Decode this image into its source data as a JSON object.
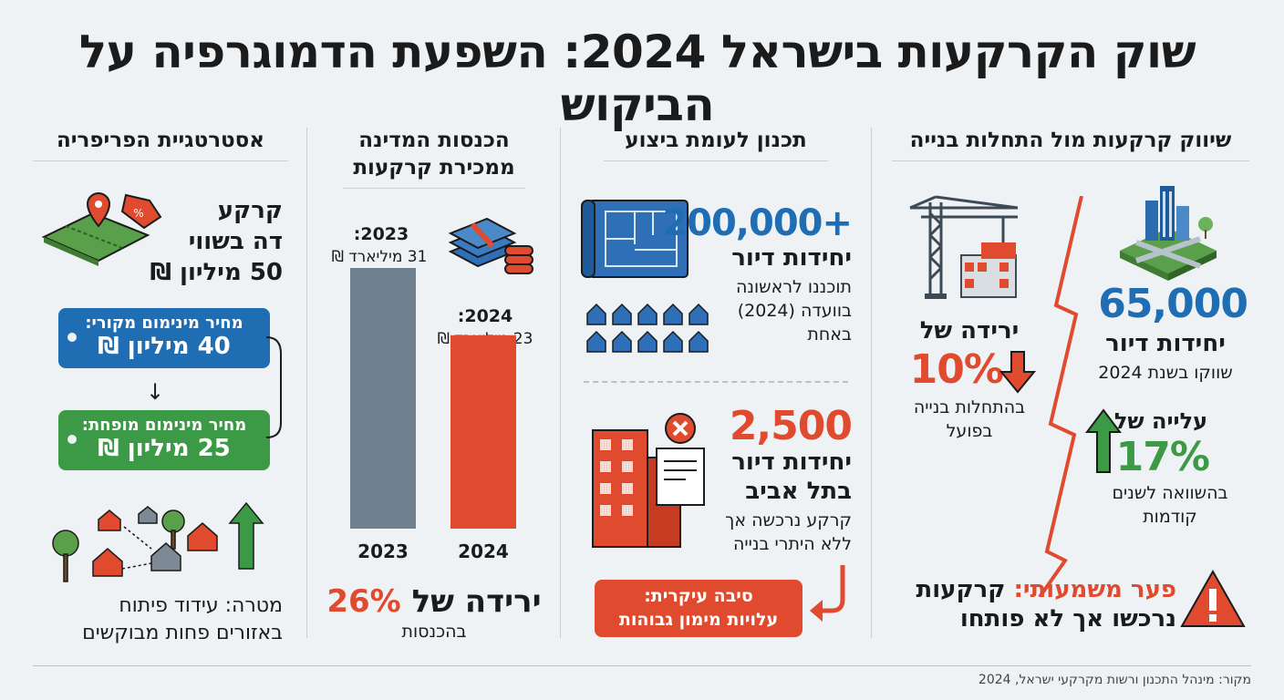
{
  "title": "שוק הקרקעות בישראל 2024: השפעת הדמוגרפיה על הביקוש",
  "col1": {
    "heading": "שיווק קרקעות מול התחלות בנייה",
    "value": "65,000",
    "units": "יחידות דיור",
    "sub": "שווקו בשנת 2024",
    "rise_label": "עלייה של",
    "rise_pct": "17%",
    "rise_sub1": "בהשוואה לשנים",
    "rise_sub2": "קודמות",
    "drop_label": "ירידה של",
    "drop_pct": "10%",
    "drop_sub1": "בהתחלות בנייה",
    "drop_sub2": "בפועל",
    "gap_title": "פער משמעותי:",
    "gap_text1": "קרקעות",
    "gap_text2": "נרכשו אך לא פותחו"
  },
  "col2": {
    "heading": "תכנון לעומת ביצוע",
    "plan_value": "200,000+",
    "plan_units": "יחידות דיור",
    "plan_sub1": "תוכננו לראשונה",
    "plan_sub2": "בוועדה (2024)",
    "plan_sub3": "באחת",
    "ta_value": "2,500",
    "ta_units1": "יחידות דיור",
    "ta_units2": "בתל אביב",
    "ta_sub1": "קרקע נרכשה אך",
    "ta_sub2": "ללא היתרי בנייה",
    "reason1": "סיבה עיקרית:",
    "reason2": "עלויות מימון גבוהות"
  },
  "col3": {
    "heading1": "הכנסות המדינה",
    "heading2": "ממכירת קרקעות",
    "label_2023_year": "2023:",
    "label_2023_value": "31 מיליארד ₪",
    "label_2024_year": "2024:",
    "label_2024_value": "23 מיליארד ₪",
    "drop_text": "ירידה של",
    "drop_pct": "26%",
    "drop_sub": "בהכנסות"
  },
  "col4": {
    "heading": "אסטרטגיית הפריפריה",
    "land1": "קרקע",
    "land2": "דה בשווי",
    "land3": "50 מיליון ₪",
    "tag1_title": "מחיר מינימום מקורי:",
    "tag1_value": "40 מיליון ₪",
    "arrow": "↓",
    "tag2_title": "מחיר מינימום מופחת:",
    "tag2_value": "25 מיליון ₪",
    "goal1": "מטרה: עידוד פיתוח",
    "goal2": "באזורים פחות מבוקשים"
  },
  "chart_data": {
    "type": "bar",
    "categories": [
      "2023",
      "2024"
    ],
    "values": [
      31,
      23
    ],
    "colors": [
      "#6e7f8d",
      "#e04a2e"
    ]
  },
  "source": "מקור: מינהל התכנון ורשות מקרקעי ישראל, 2024",
  "colors": {
    "blue": "#1f6db3",
    "orange": "#e04a2e",
    "green": "#3c9a46",
    "gray": "#6e7f8d"
  }
}
